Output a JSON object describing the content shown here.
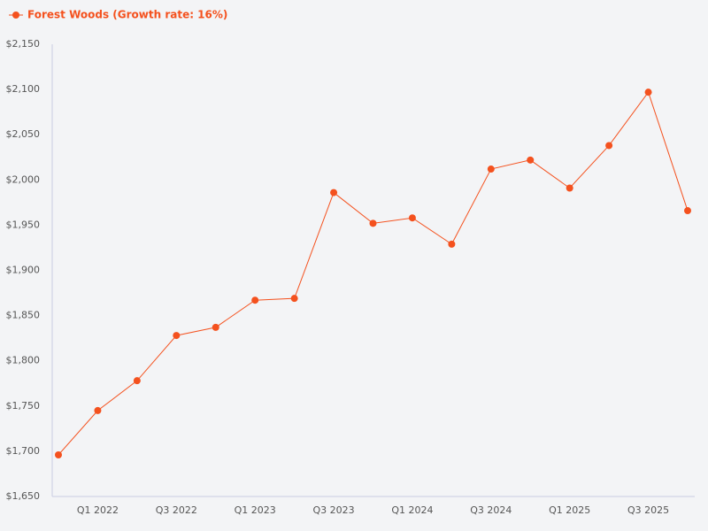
{
  "chart_data": {
    "type": "line",
    "categories": [
      null,
      "Q1 2022",
      null,
      "Q3 2022",
      null,
      "Q1 2023",
      null,
      "Q3 2023",
      null,
      "Q1 2024",
      null,
      "Q3 2024",
      null,
      "Q1 2025",
      null,
      "Q3 2025",
      null
    ],
    "series": [
      {
        "name": "Forest Woods (Growth rate: 16%)",
        "color": "#f4511e",
        "values": [
          1696,
          1745,
          1778,
          1828,
          1837,
          1867,
          1869,
          1986,
          1952,
          1958,
          1929,
          2012,
          2022,
          1991,
          2038,
          2097,
          1966
        ]
      }
    ],
    "ylim": [
      1650,
      2150
    ],
    "yticks": [
      {
        "value": 1650,
        "label": "$1,650"
      },
      {
        "value": 1700,
        "label": "$1,700"
      },
      {
        "value": 1750,
        "label": "$1,750"
      },
      {
        "value": 1800,
        "label": "$1,800"
      },
      {
        "value": 1850,
        "label": "$1,850"
      },
      {
        "value": 1900,
        "label": "$1,900"
      },
      {
        "value": 1950,
        "label": "$1,950"
      },
      {
        "value": 2000,
        "label": "$2,000"
      },
      {
        "value": 2050,
        "label": "$2,050"
      },
      {
        "value": 2100,
        "label": "$2,100"
      },
      {
        "value": 2150,
        "label": "$2,150"
      }
    ],
    "legend": "top-left",
    "grid": false
  }
}
